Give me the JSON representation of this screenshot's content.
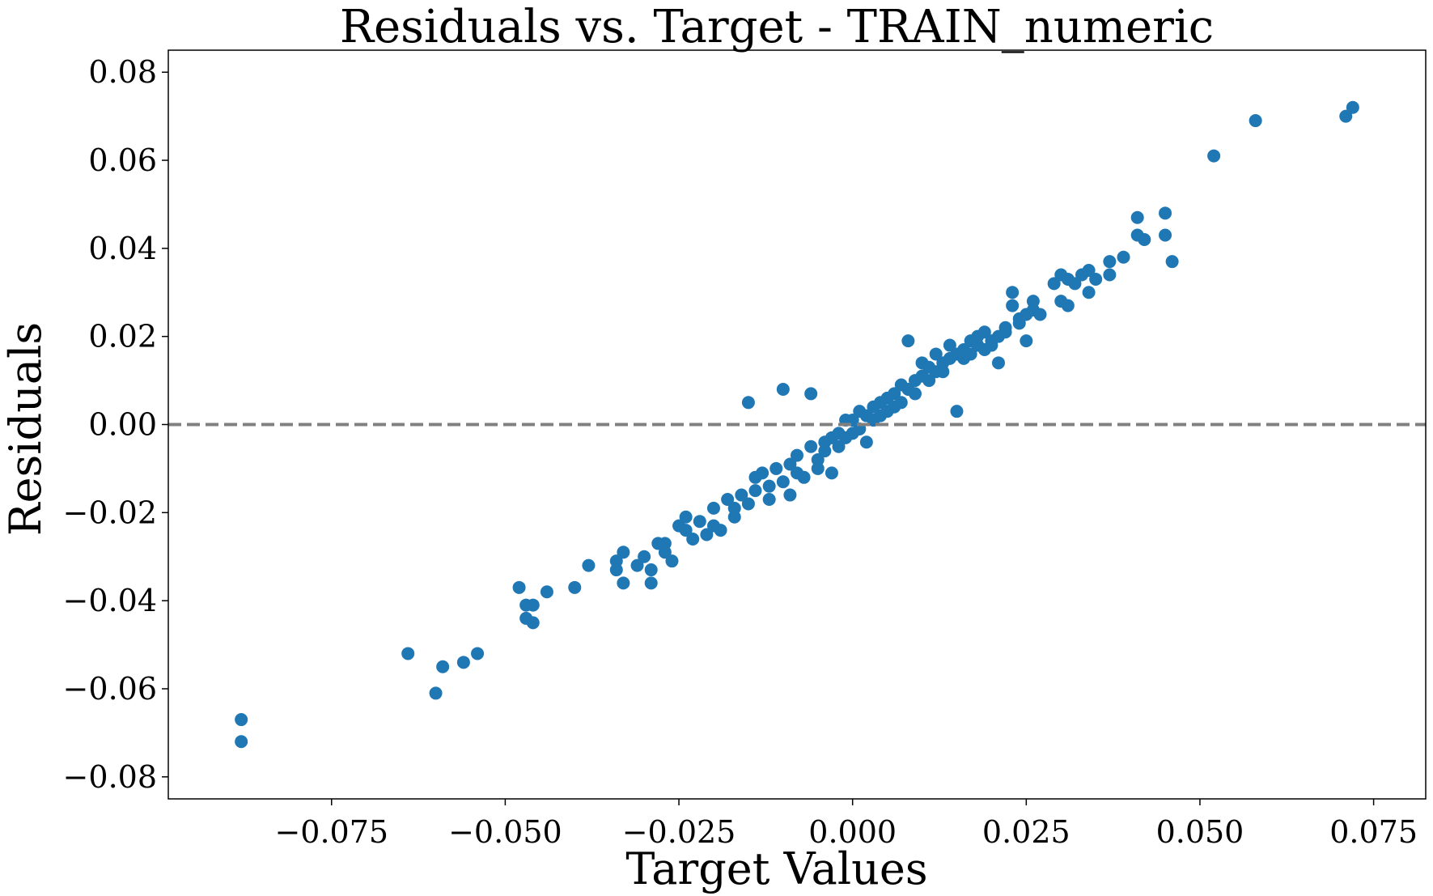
{
  "chart_data": {
    "type": "scatter",
    "title": "Residuals vs. Target - TRAIN_numeric",
    "xlabel": "Target Values",
    "ylabel": "Residuals",
    "xlim": [
      -0.0985,
      0.0825
    ],
    "ylim": [
      -0.085,
      0.085
    ],
    "xticks": [
      -0.075,
      -0.05,
      -0.025,
      0.0,
      0.025,
      0.05,
      0.075
    ],
    "xtick_labels": [
      "−0.075",
      "−0.050",
      "−0.025",
      "0.000",
      "0.025",
      "0.050",
      "0.075"
    ],
    "yticks": [
      -0.08,
      -0.06,
      -0.04,
      -0.02,
      0.0,
      0.02,
      0.04,
      0.06,
      0.08
    ],
    "ytick_labels": [
      "−0.08",
      "−0.06",
      "−0.04",
      "−0.02",
      "0.00",
      "0.02",
      "0.04",
      "0.06",
      "0.08"
    ],
    "grid": false,
    "reference_line": {
      "y": 0.0,
      "style": "dashed",
      "color": "#808080"
    },
    "point_color": "#1f77b4",
    "series": [
      {
        "points": [
          [
            -0.088,
            -0.067
          ],
          [
            -0.088,
            -0.072
          ],
          [
            -0.064,
            -0.052
          ],
          [
            -0.06,
            -0.061
          ],
          [
            -0.059,
            -0.055
          ],
          [
            -0.056,
            -0.054
          ],
          [
            -0.054,
            -0.052
          ],
          [
            -0.048,
            -0.037
          ],
          [
            -0.047,
            -0.041
          ],
          [
            -0.046,
            -0.041
          ],
          [
            -0.047,
            -0.044
          ],
          [
            -0.046,
            -0.045
          ],
          [
            -0.044,
            -0.038
          ],
          [
            -0.04,
            -0.037
          ],
          [
            -0.038,
            -0.032
          ],
          [
            -0.034,
            -0.031
          ],
          [
            -0.033,
            -0.029
          ],
          [
            -0.034,
            -0.033
          ],
          [
            -0.033,
            -0.036
          ],
          [
            -0.031,
            -0.032
          ],
          [
            -0.03,
            -0.03
          ],
          [
            -0.029,
            -0.033
          ],
          [
            -0.029,
            -0.036
          ],
          [
            -0.028,
            -0.027
          ],
          [
            -0.027,
            -0.029
          ],
          [
            -0.027,
            -0.027
          ],
          [
            -0.026,
            -0.031
          ],
          [
            -0.025,
            -0.023
          ],
          [
            -0.024,
            -0.021
          ],
          [
            -0.024,
            -0.024
          ],
          [
            -0.023,
            -0.026
          ],
          [
            -0.022,
            -0.022
          ],
          [
            -0.021,
            -0.025
          ],
          [
            -0.02,
            -0.019
          ],
          [
            -0.02,
            -0.023
          ],
          [
            -0.019,
            -0.024
          ],
          [
            -0.018,
            -0.017
          ],
          [
            -0.017,
            -0.019
          ],
          [
            -0.017,
            -0.021
          ],
          [
            -0.016,
            -0.016
          ],
          [
            -0.015,
            0.005
          ],
          [
            -0.015,
            -0.018
          ],
          [
            -0.014,
            -0.015
          ],
          [
            -0.014,
            -0.012
          ],
          [
            -0.013,
            -0.011
          ],
          [
            -0.012,
            -0.014
          ],
          [
            -0.012,
            -0.017
          ],
          [
            -0.011,
            -0.01
          ],
          [
            -0.01,
            0.008
          ],
          [
            -0.01,
            -0.013
          ],
          [
            -0.009,
            -0.016
          ],
          [
            -0.009,
            -0.009
          ],
          [
            -0.008,
            -0.011
          ],
          [
            -0.008,
            -0.007
          ],
          [
            -0.007,
            -0.012
          ],
          [
            -0.006,
            0.007
          ],
          [
            -0.006,
            -0.005
          ],
          [
            -0.005,
            -0.008
          ],
          [
            -0.005,
            -0.01
          ],
          [
            -0.004,
            -0.004
          ],
          [
            -0.004,
            -0.006
          ],
          [
            -0.003,
            -0.003
          ],
          [
            -0.003,
            -0.011
          ],
          [
            -0.002,
            -0.002
          ],
          [
            -0.002,
            -0.005
          ],
          [
            -0.001,
            0.001
          ],
          [
            -0.001,
            -0.003
          ],
          [
            0.0,
            0.001
          ],
          [
            0.0,
            -0.002
          ],
          [
            0.001,
            0.003
          ],
          [
            0.001,
            -0.001
          ],
          [
            0.002,
            0.002
          ],
          [
            0.002,
            -0.004
          ],
          [
            0.003,
            0.004
          ],
          [
            0.003,
            0.001
          ],
          [
            0.004,
            0.005
          ],
          [
            0.004,
            0.002
          ],
          [
            0.005,
            0.006
          ],
          [
            0.005,
            0.003
          ],
          [
            0.006,
            0.007
          ],
          [
            0.006,
            0.004
          ],
          [
            0.007,
            0.009
          ],
          [
            0.007,
            0.005
          ],
          [
            0.008,
            0.008
          ],
          [
            0.008,
            0.019
          ],
          [
            0.009,
            0.01
          ],
          [
            0.009,
            0.007
          ],
          [
            0.01,
            0.011
          ],
          [
            0.01,
            0.014
          ],
          [
            0.011,
            0.01
          ],
          [
            0.011,
            0.013
          ],
          [
            0.012,
            0.012
          ],
          [
            0.012,
            0.016
          ],
          [
            0.013,
            0.014
          ],
          [
            0.013,
            0.012
          ],
          [
            0.014,
            0.015
          ],
          [
            0.014,
            0.018
          ],
          [
            0.015,
            0.016
          ],
          [
            0.015,
            0.003
          ],
          [
            0.016,
            0.017
          ],
          [
            0.016,
            0.015
          ],
          [
            0.017,
            0.019
          ],
          [
            0.017,
            0.016
          ],
          [
            0.018,
            0.018
          ],
          [
            0.018,
            0.02
          ],
          [
            0.019,
            0.017
          ],
          [
            0.019,
            0.021
          ],
          [
            0.02,
            0.019
          ],
          [
            0.02,
            0.018
          ],
          [
            0.021,
            0.02
          ],
          [
            0.021,
            0.014
          ],
          [
            0.022,
            0.022
          ],
          [
            0.022,
            0.021
          ],
          [
            0.023,
            0.03
          ],
          [
            0.023,
            0.027
          ],
          [
            0.024,
            0.024
          ],
          [
            0.024,
            0.023
          ],
          [
            0.025,
            0.025
          ],
          [
            0.025,
            0.019
          ],
          [
            0.026,
            0.026
          ],
          [
            0.026,
            0.028
          ],
          [
            0.027,
            0.025
          ],
          [
            0.029,
            0.032
          ],
          [
            0.03,
            0.034
          ],
          [
            0.03,
            0.028
          ],
          [
            0.031,
            0.033
          ],
          [
            0.031,
            0.027
          ],
          [
            0.032,
            0.032
          ],
          [
            0.033,
            0.034
          ],
          [
            0.034,
            0.035
          ],
          [
            0.034,
            0.03
          ],
          [
            0.035,
            0.033
          ],
          [
            0.037,
            0.034
          ],
          [
            0.037,
            0.037
          ],
          [
            0.039,
            0.038
          ],
          [
            0.041,
            0.047
          ],
          [
            0.041,
            0.043
          ],
          [
            0.042,
            0.042
          ],
          [
            0.045,
            0.048
          ],
          [
            0.045,
            0.043
          ],
          [
            0.046,
            0.037
          ],
          [
            0.052,
            0.061
          ],
          [
            0.058,
            0.069
          ],
          [
            0.071,
            0.07
          ],
          [
            0.072,
            0.072
          ]
        ]
      }
    ]
  }
}
